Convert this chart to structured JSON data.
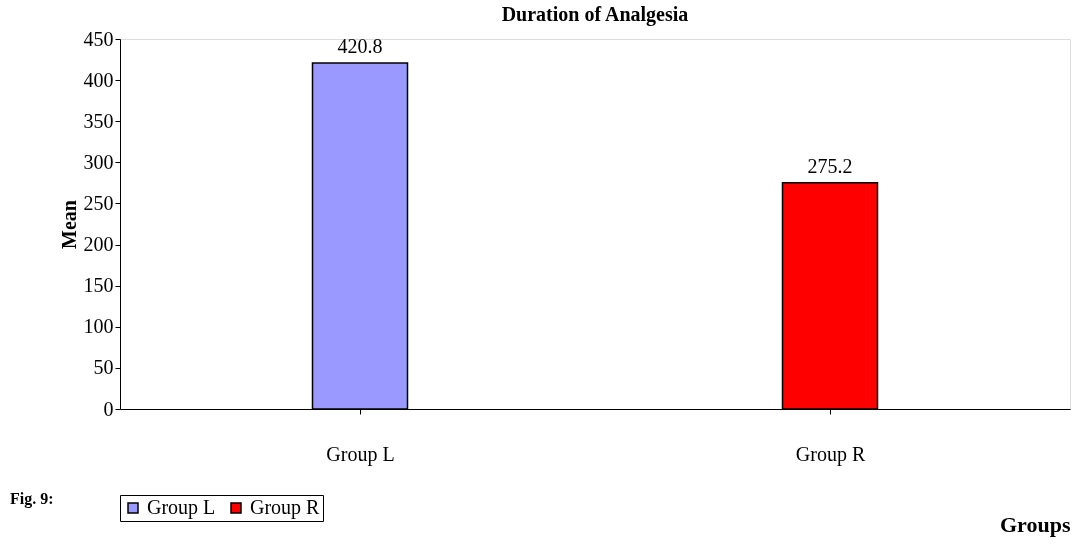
{
  "chart_data": {
    "type": "bar",
    "title": "Duration of Analgesia",
    "xlabel": "Groups",
    "ylabel": "Mean",
    "categories": [
      "Group L",
      "Group R"
    ],
    "series": [
      {
        "name": "Group L",
        "color": "#9999ff",
        "values": [
          420.8,
          null
        ]
      },
      {
        "name": "Group R",
        "color": "#ff0000",
        "values": [
          null,
          275.2
        ]
      }
    ],
    "ylim": [
      0,
      450
    ],
    "yticks": [
      0,
      50,
      100,
      150,
      200,
      250,
      300,
      350,
      400,
      450
    ],
    "data_labels": true,
    "grid": false,
    "legend": "bottom",
    "annotations": [
      "Fig. 9:"
    ]
  }
}
